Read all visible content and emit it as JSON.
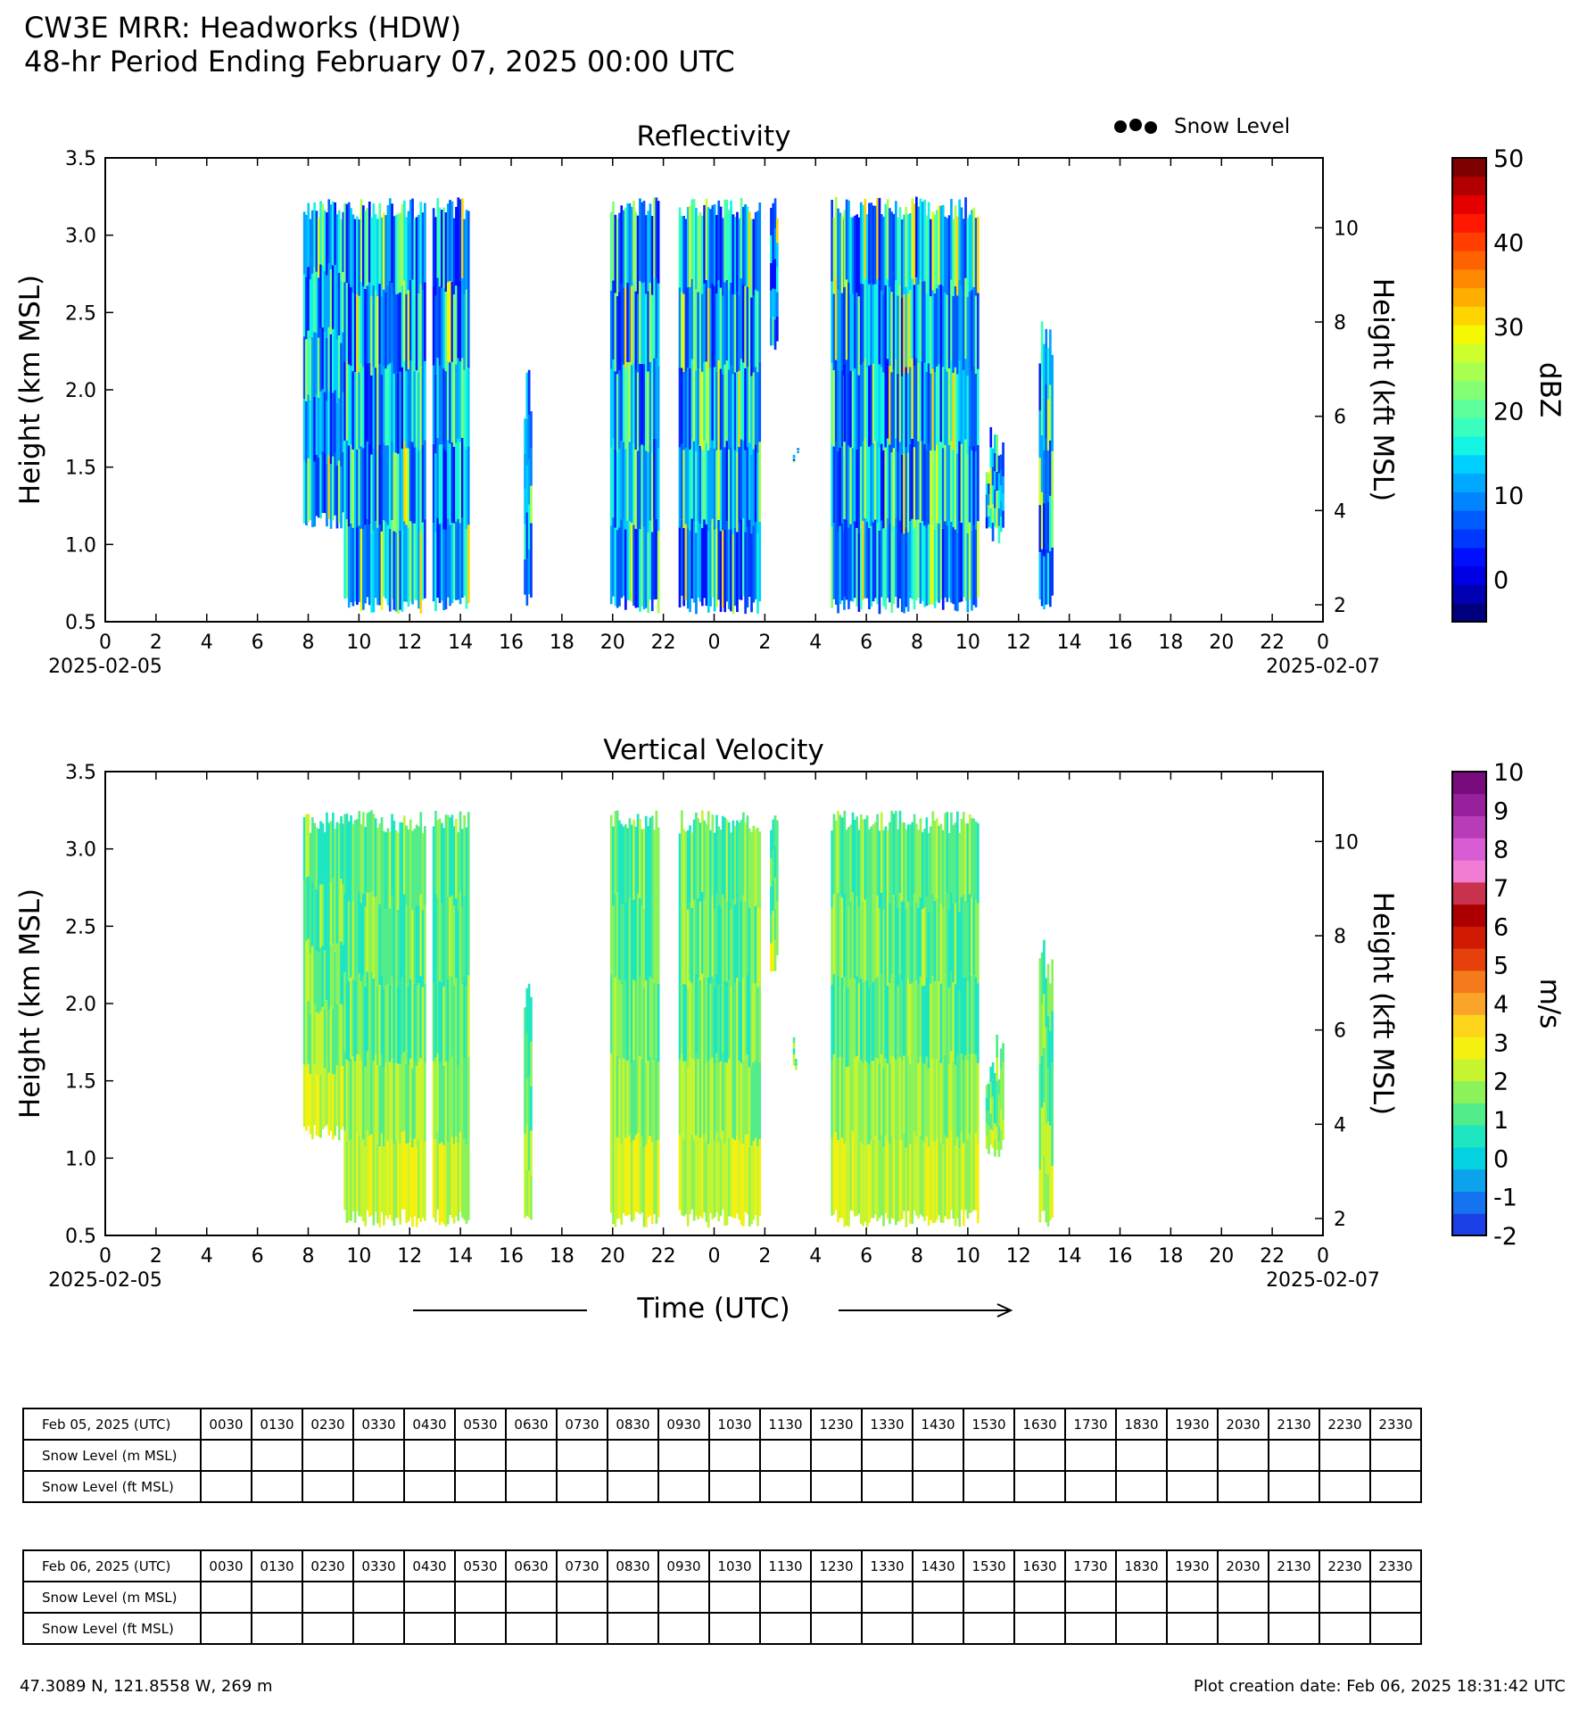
{
  "header": {
    "title": "CW3E MRR: Headworks (HDW)",
    "subtitle": "48-hr Period Ending February 07, 2025 00:00 UTC"
  },
  "legend": {
    "snow_level_label": "Snow Level"
  },
  "chart_data": [
    {
      "type": "heatmap",
      "title": "Reflectivity",
      "ylabel": "Height (km MSL)",
      "ylabel_right": "Height (kft MSL)",
      "xlabel": "Time (UTC)",
      "ylim": [
        0.5,
        3.5
      ],
      "yticks": [
        "0.5",
        "1.0",
        "1.5",
        "2.0",
        "2.5",
        "3.0",
        "3.5"
      ],
      "yticks_right": [
        "2",
        "4",
        "6",
        "8",
        "10"
      ],
      "x_ticks": [
        "0",
        "2",
        "4",
        "6",
        "8",
        "10",
        "12",
        "14",
        "16",
        "18",
        "20",
        "22",
        "0",
        "2",
        "4",
        "6",
        "8",
        "10",
        "12",
        "14",
        "16",
        "18",
        "20",
        "22",
        "0"
      ],
      "date_left": "2025-02-05",
      "date_right": "2025-02-07",
      "colorbar": {
        "label": "dBZ",
        "min": -5,
        "max": 50,
        "ticks": [
          "0",
          "10",
          "20",
          "30",
          "40",
          "50"
        ]
      },
      "echo_periods_hours": [
        [
          7.8,
          9.4,
          1.1,
          3.25
        ],
        [
          9.4,
          12.6,
          0.55,
          3.25
        ],
        [
          12.9,
          14.3,
          0.55,
          3.25
        ],
        [
          16.5,
          16.8,
          0.6,
          2.15
        ],
        [
          19.9,
          21.8,
          0.55,
          3.25
        ],
        [
          22.6,
          25.8,
          0.55,
          3.25
        ],
        [
          26.2,
          26.5,
          2.2,
          3.25
        ],
        [
          27.1,
          27.3,
          1.5,
          1.8
        ],
        [
          28.6,
          29.1,
          0.55,
          3.25
        ],
        [
          29.1,
          34.4,
          0.55,
          3.25
        ],
        [
          34.7,
          35.4,
          1.0,
          1.8
        ],
        [
          36.8,
          37.3,
          0.55,
          2.45
        ]
      ]
    },
    {
      "type": "heatmap",
      "title": "Vertical Velocity",
      "ylabel": "Height (km MSL)",
      "ylabel_right": "Height (kft MSL)",
      "ylim": [
        0.5,
        3.5
      ],
      "yticks": [
        "0.5",
        "1.0",
        "1.5",
        "2.0",
        "2.5",
        "3.0",
        "3.5"
      ],
      "yticks_right": [
        "2",
        "4",
        "6",
        "8",
        "10"
      ],
      "x_ticks": [
        "0",
        "2",
        "4",
        "6",
        "8",
        "10",
        "12",
        "14",
        "16",
        "18",
        "20",
        "22",
        "0",
        "2",
        "4",
        "6",
        "8",
        "10",
        "12",
        "14",
        "16",
        "18",
        "20",
        "22",
        "0"
      ],
      "date_left": "2025-02-05",
      "date_right": "2025-02-07",
      "colorbar": {
        "label": "m/s",
        "min": -2,
        "max": 10,
        "ticks": [
          "-2",
          "-1",
          "0",
          "1",
          "2",
          "3",
          "4",
          "5",
          "6",
          "7",
          "8",
          "9",
          "10"
        ]
      },
      "echo_periods_hours": [
        [
          7.8,
          9.4,
          1.1,
          3.25
        ],
        [
          9.4,
          12.6,
          0.55,
          3.25
        ],
        [
          12.9,
          14.3,
          0.55,
          3.25
        ],
        [
          16.5,
          16.8,
          0.6,
          2.15
        ],
        [
          19.9,
          21.8,
          0.55,
          3.25
        ],
        [
          22.6,
          25.8,
          0.55,
          3.25
        ],
        [
          26.2,
          26.5,
          2.2,
          3.25
        ],
        [
          27.1,
          27.3,
          1.5,
          1.8
        ],
        [
          28.6,
          29.1,
          0.55,
          3.25
        ],
        [
          29.1,
          34.4,
          0.55,
          3.25
        ],
        [
          34.7,
          35.4,
          1.0,
          1.8
        ],
        [
          36.8,
          37.3,
          0.55,
          2.45
        ]
      ]
    }
  ],
  "snow_tables": [
    {
      "date_label": "Feb 05, 2025 (UTC)",
      "row1": "Snow Level (m MSL)",
      "row2": "Snow Level (ft MSL)",
      "times": [
        "0030",
        "0130",
        "0230",
        "0330",
        "0430",
        "0530",
        "0630",
        "0730",
        "0830",
        "0930",
        "1030",
        "1130",
        "1230",
        "1330",
        "1430",
        "1530",
        "1630",
        "1730",
        "1830",
        "1930",
        "2030",
        "2130",
        "2230",
        "2330"
      ]
    },
    {
      "date_label": "Feb 06, 2025 (UTC)",
      "row1": "Snow Level (m MSL)",
      "row2": "Snow Level (ft MSL)",
      "times": [
        "0030",
        "0130",
        "0230",
        "0330",
        "0430",
        "0530",
        "0630",
        "0730",
        "0830",
        "0930",
        "1030",
        "1130",
        "1230",
        "1330",
        "1430",
        "1530",
        "1630",
        "1730",
        "1830",
        "1930",
        "2030",
        "2130",
        "2230",
        "2330"
      ]
    }
  ],
  "footer": {
    "location": "47.3089 N, 121.8558 W, 269 m",
    "created": "Plot creation date: Feb 06, 2025 18:31:42 UTC"
  },
  "colors": {
    "dbz_scale": [
      "#00007f",
      "#0000b2",
      "#0000e5",
      "#0010ff",
      "#0038ff",
      "#005cff",
      "#0084ff",
      "#00a8ff",
      "#00d0ff",
      "#14f4e2",
      "#38ffbe",
      "#5cff9a",
      "#84ff73",
      "#a8ff4f",
      "#ccff2b",
      "#f4f802",
      "#ffd400",
      "#ffad00",
      "#ff8900",
      "#ff6200",
      "#ff3e00",
      "#ff1700",
      "#e50000",
      "#b20000",
      "#7f0000"
    ],
    "vel_scale": [
      "#1c3fe8",
      "#1474f0",
      "#0ca3ec",
      "#04d2e0",
      "#1ee6c0",
      "#52ec8a",
      "#8cf25a",
      "#c6f530",
      "#f4f010",
      "#ffd41c",
      "#fba42a",
      "#f57a1c",
      "#e6410c",
      "#d01a04",
      "#ac0000",
      "#c8324c",
      "#f07cd4",
      "#d85cd4",
      "#b83cb8",
      "#98209c",
      "#780c7c"
    ]
  }
}
